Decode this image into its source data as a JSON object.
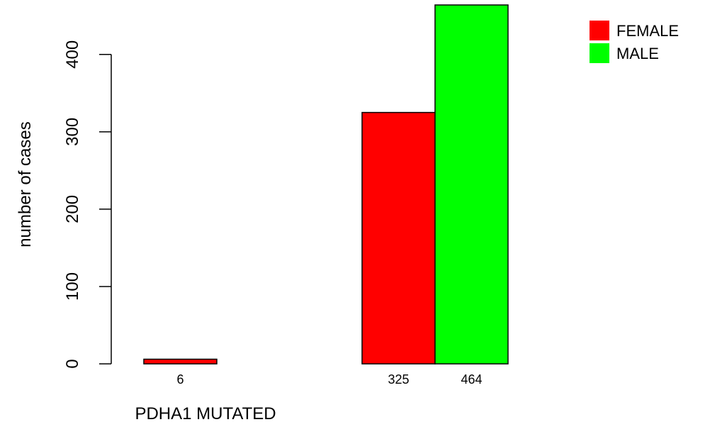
{
  "chart_data": {
    "type": "bar",
    "categories": [
      "PDHA1 MUTATED",
      ""
    ],
    "series": [
      {
        "name": "FEMALE",
        "color": "#ff0000",
        "values": [
          6,
          325
        ]
      },
      {
        "name": "MALE",
        "color": "#00ff00",
        "values": [
          0,
          464
        ]
      }
    ],
    "bar_labels": [
      [
        "6",
        ""
      ],
      [
        "325",
        "464"
      ]
    ],
    "xlabel": "PDHA1 MUTATED",
    "ylabel": "number of cases",
    "ylim": [
      0,
      464
    ],
    "yticks": [
      0,
      100,
      200,
      300,
      400
    ],
    "legend": {
      "position": "top-right",
      "entries": [
        "FEMALE",
        "MALE"
      ]
    },
    "grid": false
  }
}
